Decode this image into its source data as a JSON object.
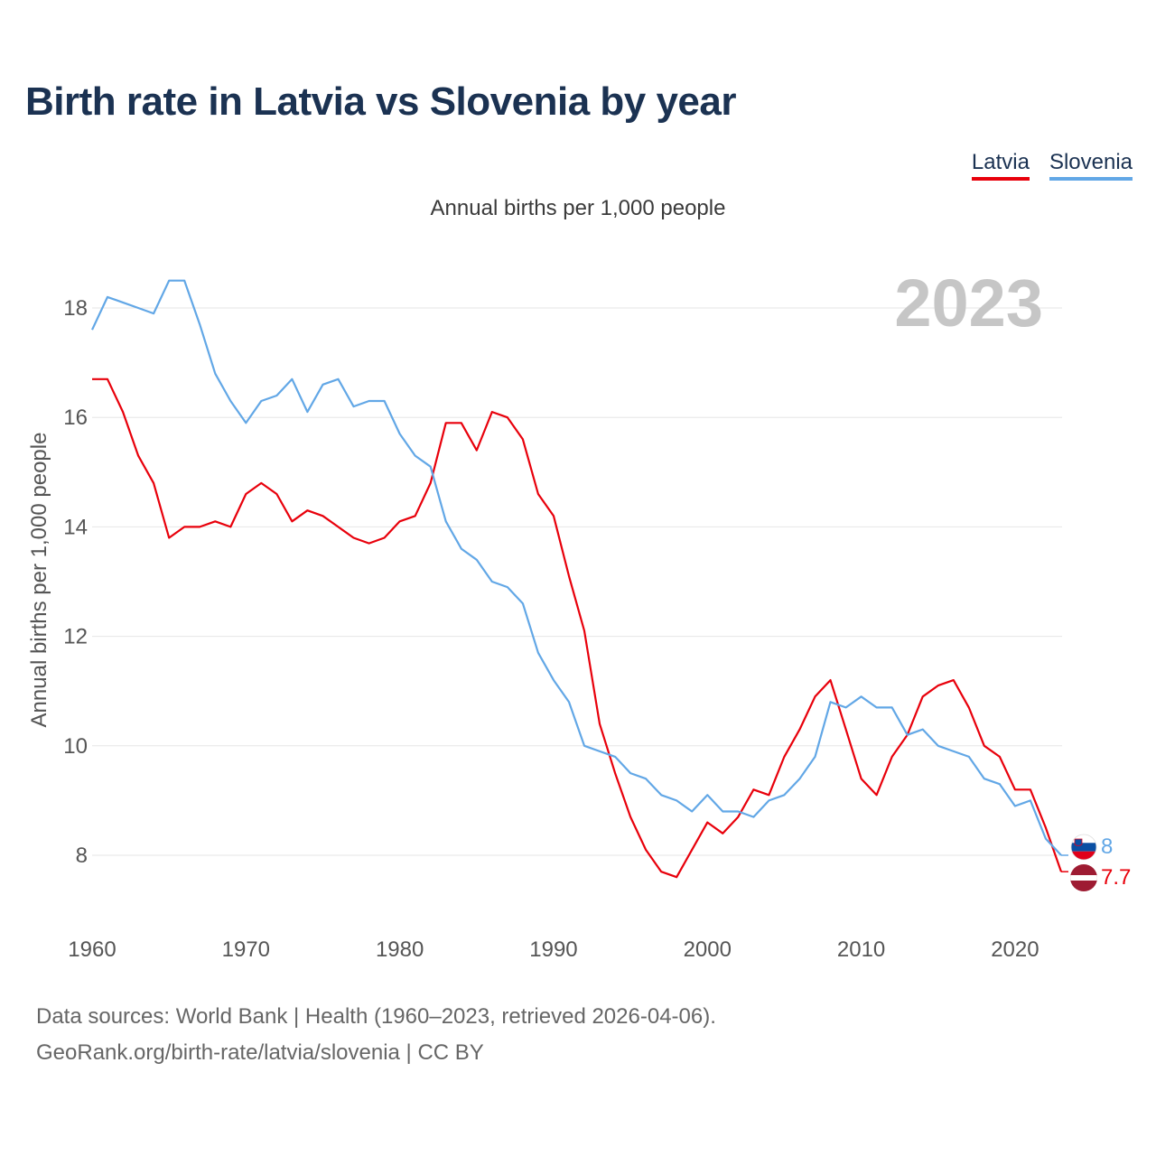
{
  "title": "Birth rate in Latvia vs Slovenia by year",
  "legend": {
    "latvia": "Latvia",
    "slovenia": "Slovenia"
  },
  "subtitle": "Annual births per 1,000 people",
  "year_label": "2023",
  "colors": {
    "latvia": "#e8000b",
    "slovenia": "#62a7e6",
    "title": "#1b3252",
    "year": "#c6c6c6",
    "grid": "#e6e6e6"
  },
  "source": {
    "line1": "Data sources: World Bank | Health (1960–2023, retrieved 2026-04-06).",
    "line2": "GeoRank.org/birth-rate/latvia/slovenia | CC BY"
  },
  "chart_data": {
    "type": "line",
    "title": "Birth rate in Latvia vs Slovenia by year",
    "xlabel": "",
    "ylabel": "Annual births per 1,000 people",
    "xlim": [
      1960,
      2023
    ],
    "ylim": [
      7,
      19
    ],
    "yticks": [
      8,
      10,
      12,
      14,
      16,
      18
    ],
    "xticks": [
      1960,
      1970,
      1980,
      1990,
      2000,
      2010,
      2020
    ],
    "x_start": 1960,
    "series": [
      {
        "name": "Latvia",
        "color": "#e8000b",
        "end_label": "7.7",
        "values": [
          16.7,
          16.7,
          16.1,
          15.3,
          14.8,
          13.8,
          14.0,
          14.0,
          14.1,
          14.0,
          14.6,
          14.8,
          14.6,
          14.1,
          14.3,
          14.2,
          14.0,
          13.8,
          13.7,
          13.8,
          14.1,
          14.2,
          14.8,
          15.9,
          15.9,
          15.4,
          16.1,
          16.0,
          15.6,
          14.6,
          14.2,
          13.1,
          12.1,
          10.4,
          9.5,
          8.7,
          8.1,
          7.7,
          7.6,
          8.1,
          8.6,
          8.4,
          8.7,
          9.2,
          9.1,
          9.8,
          10.3,
          10.9,
          11.2,
          10.3,
          9.4,
          9.1,
          9.8,
          10.2,
          10.9,
          11.1,
          11.2,
          10.7,
          10.0,
          9.8,
          9.2,
          9.2,
          8.5,
          7.7
        ]
      },
      {
        "name": "Slovenia",
        "color": "#62a7e6",
        "end_label": "8",
        "values": [
          17.6,
          18.2,
          18.1,
          18.0,
          17.9,
          18.5,
          18.5,
          17.7,
          16.8,
          16.3,
          15.9,
          16.3,
          16.4,
          16.7,
          16.1,
          16.6,
          16.7,
          16.2,
          16.3,
          16.3,
          15.7,
          15.3,
          15.1,
          14.1,
          13.6,
          13.4,
          13.0,
          12.9,
          12.6,
          11.7,
          11.2,
          10.8,
          10.0,
          9.9,
          9.8,
          9.5,
          9.4,
          9.1,
          9.0,
          8.8,
          9.1,
          8.8,
          8.8,
          8.7,
          9.0,
          9.1,
          9.4,
          9.8,
          10.8,
          10.7,
          10.9,
          10.7,
          10.7,
          10.2,
          10.3,
          10.0,
          9.9,
          9.8,
          9.4,
          9.3,
          8.9,
          9.0,
          8.3,
          8.0
        ]
      }
    ]
  }
}
